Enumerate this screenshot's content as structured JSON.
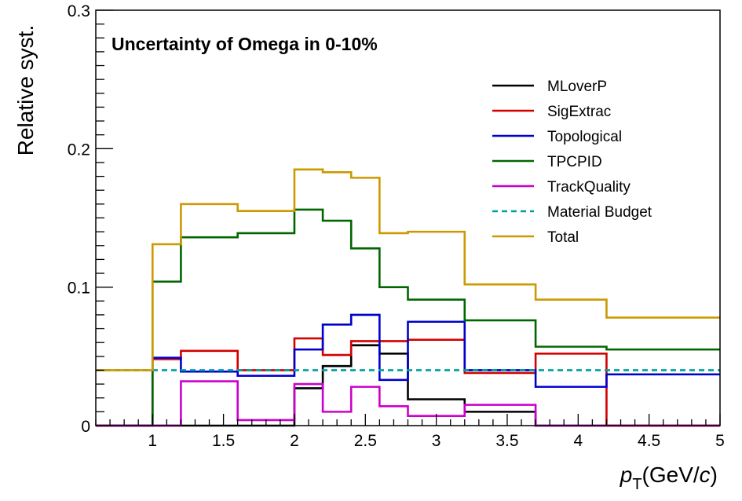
{
  "chart_data": {
    "type": "line",
    "title": "Uncertainty of Omega in 0-10%",
    "ylabel": "Relative syst.",
    "xlabel": {
      "symbol": "p",
      "subscript": "T",
      "unit_prefix": "(GeV/",
      "unit_var": "c",
      "unit_suffix": ")"
    },
    "xlim": [
      0.6,
      5.0
    ],
    "ylim": [
      0,
      0.3
    ],
    "x_ticks": [
      1,
      1.5,
      2,
      2.5,
      3,
      3.5,
      4,
      4.5,
      5
    ],
    "x_tick_labels": [
      "1",
      "1.5",
      "2",
      "2.5",
      "3",
      "3.5",
      "4",
      "4.5",
      "5"
    ],
    "y_ticks": [
      0,
      0.1,
      0.2,
      0.3
    ],
    "y_tick_labels": [
      "0",
      "0.1",
      "0.2",
      "0.3"
    ],
    "bin_edges": [
      0.6,
      1.0,
      1.2,
      1.6,
      2.0,
      2.2,
      2.4,
      2.6,
      2.8,
      3.2,
      3.7,
      4.2,
      5.0
    ],
    "legend_position": "top-right",
    "grid": false,
    "series": [
      {
        "name": "MLoverP",
        "color": "#000000",
        "dashed": false,
        "values": [
          0,
          0,
          0,
          0,
          0.027,
          0.043,
          0.058,
          0.052,
          0.019,
          0.01,
          0,
          0
        ]
      },
      {
        "name": "SigExtrac",
        "color": "#d40000",
        "dashed": false,
        "values": [
          0,
          0.048,
          0.054,
          0.04,
          0.063,
          0.051,
          0.061,
          0.061,
          0.062,
          0.038,
          0.052,
          0
        ]
      },
      {
        "name": "Topological",
        "color": "#0000cc",
        "dashed": false,
        "values": [
          0,
          0.049,
          0.039,
          0.036,
          0.055,
          0.073,
          0.08,
          0.033,
          0.075,
          0.04,
          0.028,
          0.037
        ]
      },
      {
        "name": "TPCPID",
        "color": "#006600",
        "dashed": false,
        "values": [
          0,
          0.104,
          0.136,
          0.139,
          0.156,
          0.148,
          0.128,
          0.1,
          0.091,
          0.076,
          0.057,
          0.055
        ]
      },
      {
        "name": "TrackQuality",
        "color": "#cc00cc",
        "dashed": false,
        "values": [
          0,
          0,
          0.032,
          0.004,
          0.03,
          0.01,
          0.028,
          0.014,
          0.007,
          0.015,
          0,
          0
        ]
      },
      {
        "name": "Material Budget",
        "color": "#00a0a0",
        "dashed": true,
        "values": [
          0.04,
          0.04,
          0.04,
          0.04,
          0.04,
          0.04,
          0.04,
          0.04,
          0.04,
          0.04,
          0.04,
          0.04
        ]
      },
      {
        "name": "Total",
        "color": "#cc9900",
        "dashed": false,
        "values": [
          0.04,
          0.131,
          0.16,
          0.155,
          0.185,
          0.183,
          0.179,
          0.139,
          0.14,
          0.102,
          0.091,
          0.078
        ]
      }
    ]
  }
}
